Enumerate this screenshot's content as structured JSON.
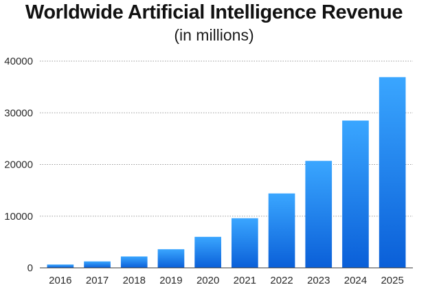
{
  "chart_data": {
    "type": "bar",
    "title": "Worldwide Artificial Intelligence Revenue",
    "subtitle": "(in millions)",
    "xlabel": "",
    "ylabel": "",
    "categories": [
      "2016",
      "2017",
      "2018",
      "2019",
      "2020",
      "2021",
      "2022",
      "2023",
      "2024",
      "2025"
    ],
    "values": [
      640,
      1250,
      2200,
      3600,
      6000,
      9600,
      14400,
      20700,
      28500,
      36900
    ],
    "ylim": [
      0,
      40000
    ],
    "yticks": [
      0,
      10000,
      20000,
      30000,
      40000
    ],
    "grid": true,
    "legend": "none",
    "colors": {
      "bar_top": "#3aa6ff",
      "bar_bottom": "#0a5fd8",
      "grid": "#9a9a9a",
      "axis": "#333333"
    }
  }
}
